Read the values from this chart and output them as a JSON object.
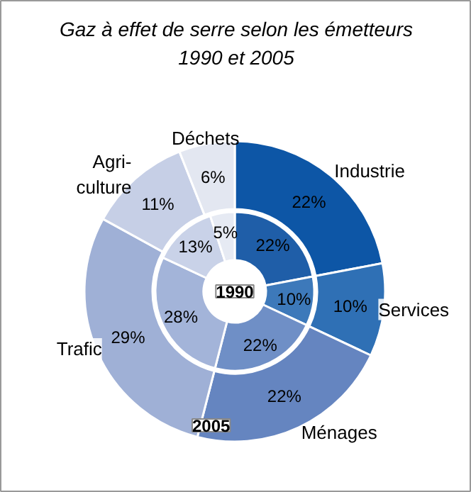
{
  "chart_data": {
    "type": "donut",
    "title": "Gaz à effet de serre selon les émetteurs",
    "subtitle": "1990 et 2005",
    "categories": [
      "Industrie",
      "Services",
      "Ménages",
      "Trafic",
      "Agri-\nculture",
      "Déchets"
    ],
    "data_labels": true,
    "series": [
      {
        "name": "1990",
        "values": [
          22,
          10,
          22,
          28,
          13,
          5
        ],
        "value_labels": [
          "22%",
          "10%",
          "22%",
          "28%",
          "13%",
          "5%"
        ],
        "colors": [
          "#1f5ea8",
          "#3d79ba",
          "#6f8fc6",
          "#a3b4d9",
          "#c9d2e8",
          "#e6eaf3"
        ]
      },
      {
        "name": "2005",
        "values": [
          22,
          10,
          22,
          29,
          11,
          6
        ],
        "value_labels": [
          "22%",
          "10%",
          "22%",
          "29%",
          "11%",
          "6%"
        ],
        "colors": [
          "#0d56a6",
          "#2f70b5",
          "#6585c0",
          "#9fb0d6",
          "#c6cfe6",
          "#e3e7f1"
        ]
      }
    ]
  }
}
